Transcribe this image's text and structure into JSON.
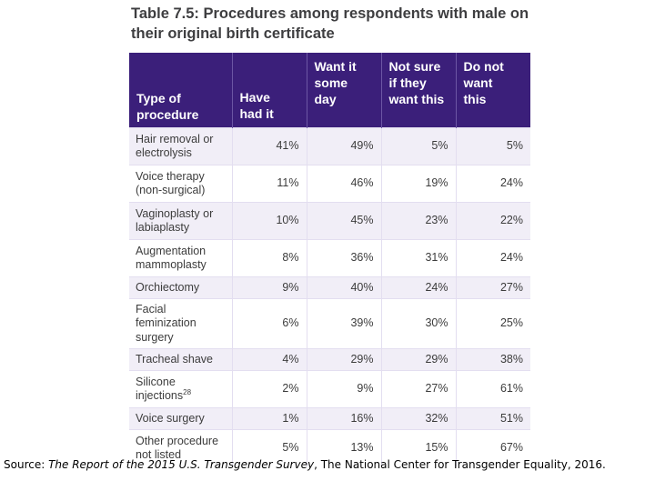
{
  "title": {
    "label": "Table 7.5:",
    "text": " Procedures among respondents with male on their original birth certificate"
  },
  "table": {
    "headers": [
      "Type of\nprocedure",
      "Have\nhad it",
      "Want it\nsome\nday",
      "Not sure\nif they\nwant this",
      "Do not\nwant\nthis"
    ],
    "rows": [
      {
        "procedure": "Hair removal or\nelectrolysis",
        "values": [
          "41%",
          "49%",
          "5%",
          "5%"
        ]
      },
      {
        "procedure": "Voice therapy\n(non-surgical)",
        "values": [
          "11%",
          "46%",
          "19%",
          "24%"
        ]
      },
      {
        "procedure": "Vaginoplasty or\nlabiaplasty",
        "values": [
          "10%",
          "45%",
          "23%",
          "22%"
        ]
      },
      {
        "procedure": "Augmentation\nmammoplasty",
        "values": [
          "8%",
          "36%",
          "31%",
          "24%"
        ]
      },
      {
        "procedure": "Orchiectomy",
        "values": [
          "9%",
          "40%",
          "24%",
          "27%"
        ]
      },
      {
        "procedure": "Facial\nfeminization\nsurgery",
        "values": [
          "6%",
          "39%",
          "30%",
          "25%"
        ]
      },
      {
        "procedure": "Tracheal shave",
        "values": [
          "4%",
          "29%",
          "29%",
          "38%"
        ]
      },
      {
        "procedure": "Silicone\ninjections",
        "footnote": "28",
        "values": [
          "2%",
          "9%",
          "27%",
          "61%"
        ]
      },
      {
        "procedure": "Voice surgery",
        "values": [
          "1%",
          "16%",
          "32%",
          "51%"
        ]
      },
      {
        "procedure": "Other procedure\nnot listed",
        "values": [
          "5%",
          "13%",
          "15%",
          "67%"
        ]
      }
    ]
  },
  "source": {
    "prefix": "Source:  ",
    "report": "The Report of the 2015 U.S. Transgender Survey",
    "suffix": ", The National Center for Transgender Equality, 2016."
  }
}
